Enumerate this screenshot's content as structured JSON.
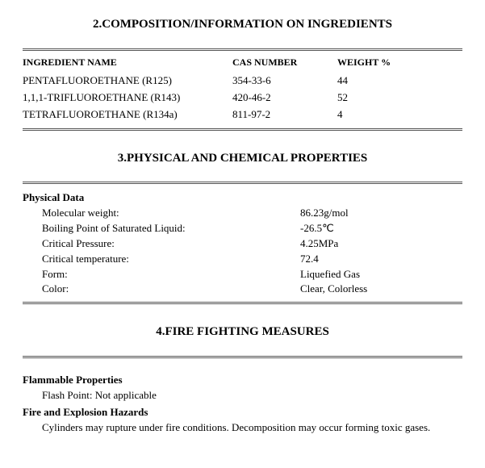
{
  "section2": {
    "title": "2.COMPOSITION/INFORMATION ON INGREDIENTS",
    "headers": {
      "name": "INGREDIENT NAME",
      "cas": "CAS NUMBER",
      "weight": "WEIGHT %"
    },
    "rows": [
      {
        "name": "PENTAFLUOROETHANE (R125)",
        "cas": "354-33-6",
        "weight": "44"
      },
      {
        "name": "1,1,1-TRIFLUOROETHANE (R143)",
        "cas": "420-46-2",
        "weight": "52"
      },
      {
        "name": "TETRAFLUOROETHANE (R134a)",
        "cas": "811-97-2",
        "weight": "4"
      }
    ]
  },
  "section3": {
    "title": "3.PHYSICAL AND CHEMICAL PROPERTIES",
    "physical_data_label": "Physical Data",
    "rows": [
      {
        "label": "Molecular weight:",
        "value": "86.23g/mol"
      },
      {
        "label": "Boiling Point of Saturated Liquid:",
        "value": "-26.5℃"
      },
      {
        "label": "Critical Pressure:",
        "value": "4.25MPa"
      },
      {
        "label": "Critical temperature:",
        "value": "72.4"
      },
      {
        "label": "Form:",
        "value": "Liquefied Gas"
      },
      {
        "label": "Color:",
        "value": "Clear, Colorless"
      }
    ]
  },
  "section4": {
    "title": "4.FIRE FIGHTING MEASURES",
    "flammable_label": "Flammable Properties",
    "flash_point": "Flash Point: Not applicable",
    "hazards_label": "Fire and Explosion Hazards",
    "hazards_text": "Cylinders may rupture under fire conditions. Decomposition may occur forming toxic gases."
  },
  "style": {
    "rule_color": "#555555",
    "text_color": "#000000",
    "bg_color": "#ffffff",
    "title_fontsize_pt": 15,
    "body_fontsize_pt": 13,
    "header_fontsize_pt": 12,
    "font_family": "Times New Roman"
  }
}
